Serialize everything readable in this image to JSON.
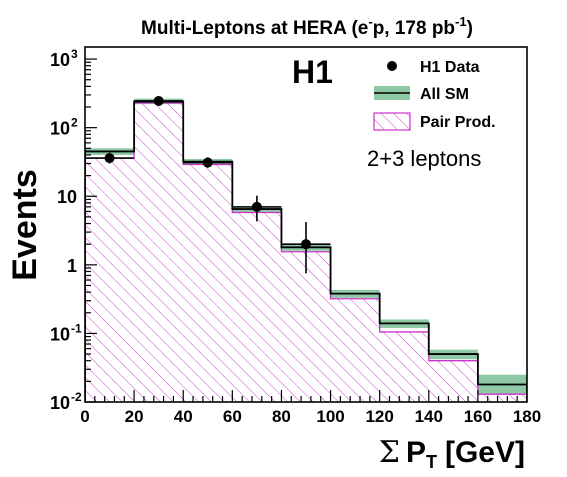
{
  "chart_data": {
    "type": "bar",
    "title_main": "Multi-Leptons at HERA (e",
    "title_sup1": "-",
    "title_mid": "p, 178 pb",
    "title_sup2": "-1",
    "title_end": ")",
    "experiment_label": "H1",
    "annotation": "2+3 leptons",
    "ylabel": "Events",
    "xlabel_sigma": "Σ",
    "xlabel_p": "P",
    "xlabel_sub": "T",
    "xlabel_unit": "[GeV]",
    "xlim": [
      0,
      180
    ],
    "ylim": [
      0.01,
      1500
    ],
    "yscale": "log",
    "bin_edges": [
      0,
      20,
      40,
      60,
      80,
      100,
      120,
      140,
      160,
      180
    ],
    "x_ticks": [
      "0",
      "20",
      "40",
      "60",
      "80",
      "100",
      "120",
      "140",
      "160",
      "180"
    ],
    "y_ticks": [
      {
        "value": 1000,
        "base": "10",
        "exp": "3"
      },
      {
        "value": 100,
        "base": "10",
        "exp": "2"
      },
      {
        "value": 10,
        "base": "10",
        "exp": ""
      },
      {
        "value": 1,
        "base": "1",
        "exp": ""
      },
      {
        "value": 0.1,
        "base": "10",
        "exp": "-1"
      },
      {
        "value": 0.01,
        "base": "10",
        "exp": "-2"
      }
    ],
    "series": [
      {
        "name": "All SM",
        "values": [
          45,
          240,
          32,
          6.5,
          1.8,
          0.38,
          0.14,
          0.05,
          0.018
        ],
        "band_low": [
          40,
          220,
          29,
          5.9,
          1.6,
          0.33,
          0.12,
          0.042,
          0.013
        ],
        "band_high": [
          50,
          265,
          35,
          7.1,
          2.0,
          0.43,
          0.16,
          0.058,
          0.025
        ],
        "color": "#8ec9a6"
      },
      {
        "name": "Pair Prod.",
        "values": [
          36,
          230,
          29,
          5.8,
          1.55,
          0.32,
          0.105,
          0.04,
          0.013
        ],
        "color": "#cc33cc"
      }
    ],
    "data_points": {
      "name": "H1 Data",
      "x": [
        10,
        30,
        50,
        70,
        90
      ],
      "y": [
        36,
        245,
        31,
        7,
        2
      ],
      "err_low": [
        30,
        230,
        26,
        4.3,
        0.75
      ],
      "err_high": [
        43,
        262,
        37,
        10.2,
        4.2
      ]
    },
    "legend": [
      {
        "label": "H1 Data",
        "kind": "marker"
      },
      {
        "label": "All SM",
        "kind": "band"
      },
      {
        "label": "Pair Prod.",
        "kind": "hatch"
      }
    ]
  }
}
